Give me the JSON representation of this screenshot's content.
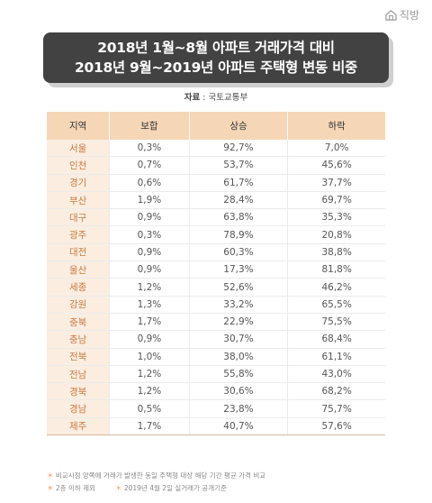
{
  "brand": {
    "name": "직방"
  },
  "title": {
    "line1": "2018년 1월~8월 아파트 거래가격 대비",
    "line2": "2018년 9월~2019년 아파트 주택형 변동 비중"
  },
  "source": {
    "label": "자료",
    "value": "국토교통부"
  },
  "table": {
    "headers": [
      "지역",
      "보합",
      "상승",
      "하락"
    ],
    "rows": [
      [
        "서울",
        "0,3%",
        "92,7%",
        "7,0%"
      ],
      [
        "인천",
        "0,7%",
        "53,7%",
        "45,6%"
      ],
      [
        "경기",
        "0,6%",
        "61,7%",
        "37,7%"
      ],
      [
        "부산",
        "1,9%",
        "28,4%",
        "69,7%"
      ],
      [
        "대구",
        "0,9%",
        "63,8%",
        "35,3%"
      ],
      [
        "광주",
        "0,3%",
        "78,9%",
        "20,8%"
      ],
      [
        "대전",
        "0,9%",
        "60,3%",
        "38,8%"
      ],
      [
        "울산",
        "0,9%",
        "17,3%",
        "81,8%"
      ],
      [
        "세종",
        "1,2%",
        "52,6%",
        "46,2%"
      ],
      [
        "강원",
        "1,3%",
        "33,2%",
        "65,5%"
      ],
      [
        "충북",
        "1,7%",
        "22,9%",
        "75,5%"
      ],
      [
        "충남",
        "0,9%",
        "30,7%",
        "68,4%"
      ],
      [
        "전북",
        "1,0%",
        "38,0%",
        "61,1%"
      ],
      [
        "전남",
        "1,2%",
        "55,8%",
        "43,0%"
      ],
      [
        "경북",
        "1,2%",
        "30,6%",
        "68,2%"
      ],
      [
        "경남",
        "0,5%",
        "23,8%",
        "75,7%"
      ],
      [
        "제주",
        "1,7%",
        "40,7%",
        "57,6%"
      ]
    ]
  },
  "notes": {
    "note1": "비교시점 양쪽에 거래가 발생한 동일 주택형 대상 해당 기간 평균 가격 비교",
    "note2": "2층 이하 제외",
    "note3": "2019년 4월 2일 실거래가 공개기준"
  },
  "colors": {
    "title_bg": "#424242",
    "header_bg": "#f5d6b6",
    "region_bg": "#fbeee0",
    "region_text": "#c97a44"
  }
}
